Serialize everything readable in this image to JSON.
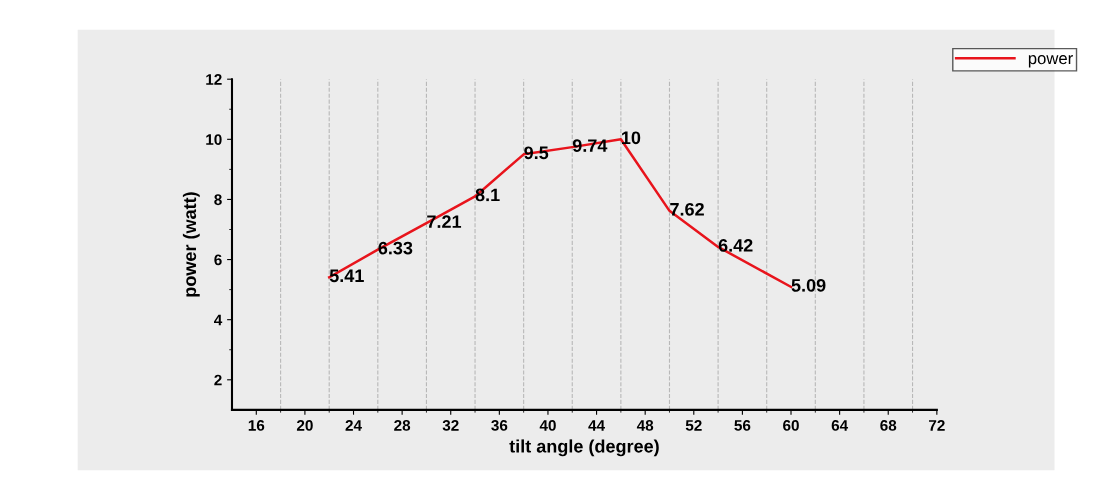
{
  "chart_data": {
    "type": "line",
    "xlabel": "tilt angle (degree)",
    "ylabel": "power (watt)",
    "x": [
      22,
      26,
      30,
      34,
      38,
      42,
      46,
      50,
      54,
      60
    ],
    "series": [
      {
        "name": "power",
        "color": "#e8141c",
        "values": [
          5.41,
          6.33,
          7.21,
          8.1,
          9.5,
          9.74,
          10,
          7.62,
          6.42,
          5.09
        ]
      }
    ],
    "xlim": [
      14,
      72
    ],
    "xticks": [
      16,
      20,
      24,
      28,
      32,
      36,
      40,
      44,
      48,
      52,
      56,
      60,
      64,
      68,
      72
    ],
    "ylim": [
      1,
      12
    ],
    "yticks": [
      2,
      4,
      6,
      8,
      10,
      12
    ],
    "grid": "x",
    "legend": "top right",
    "data_labels": true,
    "marker": "none",
    "line_style": "solid"
  }
}
